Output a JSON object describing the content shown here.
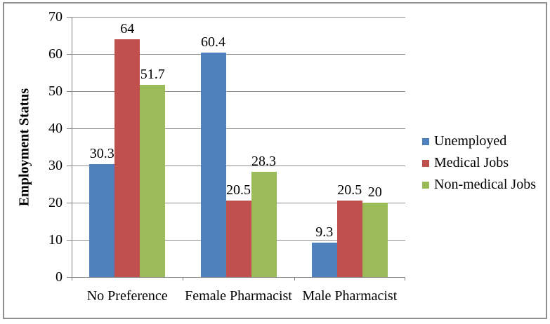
{
  "chart_data": {
    "type": "bar",
    "title": "",
    "xlabel": "",
    "ylabel": "Employment Status",
    "categories": [
      "No Preference",
      "Female Pharmacist",
      "Male Pharmacist"
    ],
    "series": [
      {
        "name": "Unemployed",
        "color": "#4F81BD",
        "values": [
          30.3,
          60.4,
          9.3
        ],
        "labels": [
          "30.3",
          "60.4",
          "9.3"
        ]
      },
      {
        "name": "Medical Jobs",
        "color": "#C0504D",
        "values": [
          64,
          20.5,
          20.5
        ],
        "labels": [
          "64",
          "20.5",
          "20.5"
        ]
      },
      {
        "name": "Non-medical Jobs",
        "color": "#9BBB59",
        "values": [
          51.7,
          28.3,
          20
        ],
        "labels": [
          "51.7",
          "28.3",
          "20"
        ]
      }
    ],
    "ylim": [
      0,
      70
    ],
    "ytick_step": 10,
    "yticks": [
      0,
      10,
      20,
      30,
      40,
      50,
      60,
      70
    ],
    "grid": true,
    "data_labels_shown": true,
    "legend_position": "right",
    "colors": {
      "axis": "#808080",
      "gridline": "#8C8C8C",
      "border": "#8F8F8F",
      "text": "#000000",
      "background": "#FFFFFF"
    }
  }
}
